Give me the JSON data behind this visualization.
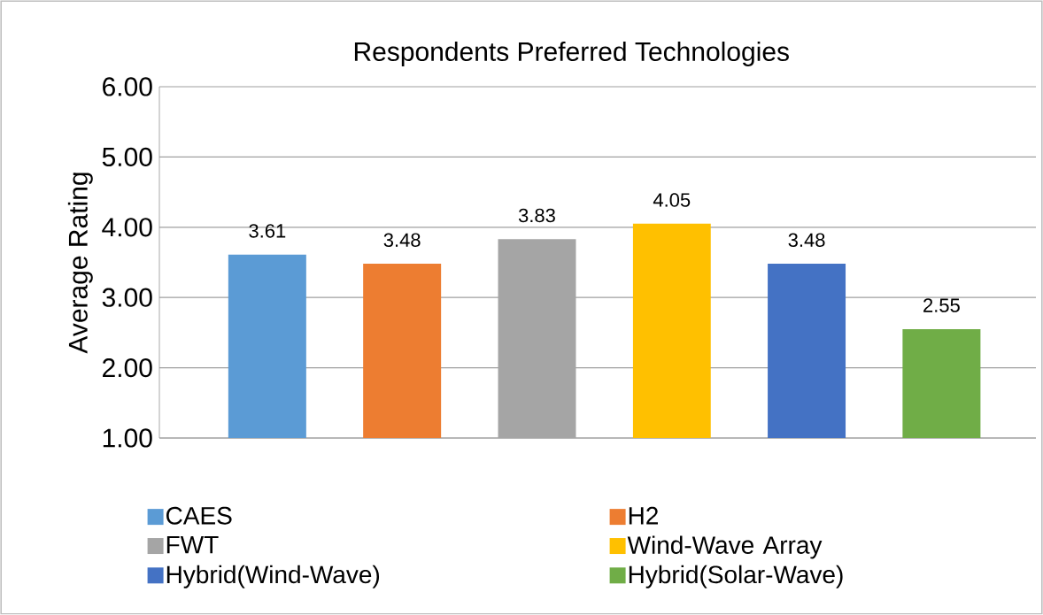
{
  "chart_data": {
    "type": "bar",
    "title": "Respondents Preferred Technologies",
    "ylabel": "Average Rating",
    "categories": [
      null,
      null,
      null,
      null,
      null,
      null
    ],
    "series": [
      {
        "name": "CAES",
        "color": "#5b9bd5",
        "values": [
          3.61,
          null,
          null,
          null,
          null,
          null
        ]
      },
      {
        "name": "H2",
        "color": "#ed7d31",
        "values": [
          null,
          3.48,
          null,
          null,
          null,
          null
        ]
      },
      {
        "name": "FWT",
        "color": "#a5a5a5",
        "values": [
          null,
          null,
          3.83,
          null,
          null,
          null
        ]
      },
      {
        "name": "Wind-Wave Array",
        "color": "#ffc000",
        "values": [
          null,
          null,
          null,
          4.05,
          null,
          null
        ]
      },
      {
        "name": "Hybrid(Wind-Wave)",
        "color": "#4472c4",
        "values": [
          null,
          null,
          null,
          null,
          3.48,
          null
        ]
      },
      {
        "name": "Hybrid(Solar-Wave)",
        "color": "#70ad47",
        "values": [
          null,
          null,
          null,
          null,
          null,
          2.55
        ]
      }
    ],
    "ylim": [
      1,
      6
    ],
    "yticks": [
      {
        "value": 1,
        "label": "1.00"
      },
      {
        "value": 2,
        "label": "2.00"
      },
      {
        "value": 3,
        "label": "3.00"
      },
      {
        "value": 4,
        "label": "4.00"
      },
      {
        "value": 5,
        "label": "5.00"
      },
      {
        "value": 6,
        "label": "6.00"
      }
    ],
    "grid": "y",
    "legend": "bottom",
    "data_labels": true
  }
}
